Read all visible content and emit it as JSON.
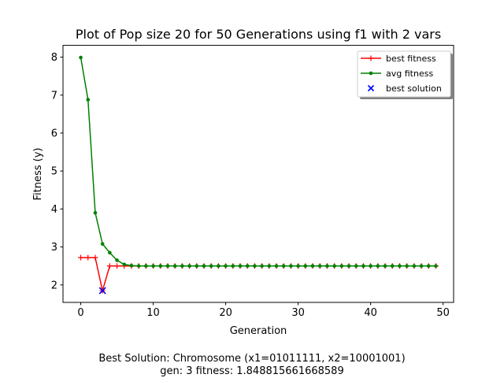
{
  "chart_data": {
    "type": "line",
    "title": "Plot of Pop size 20 for 50 Generations using f1 with 2 vars",
    "xlabel": "Generation",
    "ylabel": "Fitness (y)",
    "xlim": [
      -2.45,
      51.45
    ],
    "ylim": [
      1.54,
      8.31
    ],
    "xticks": [
      0,
      10,
      20,
      30,
      40,
      50
    ],
    "yticks": [
      2,
      3,
      4,
      5,
      6,
      7,
      8
    ],
    "grid": false,
    "legend_position": "top-right",
    "x": [
      0,
      1,
      2,
      3,
      4,
      5,
      6,
      7,
      8,
      9,
      10,
      11,
      12,
      13,
      14,
      15,
      16,
      17,
      18,
      19,
      20,
      21,
      22,
      23,
      24,
      25,
      26,
      27,
      28,
      29,
      30,
      31,
      32,
      33,
      34,
      35,
      36,
      37,
      38,
      39,
      40,
      41,
      42,
      43,
      44,
      45,
      46,
      47,
      48,
      49
    ],
    "series": [
      {
        "name": "best fitness",
        "color": "#ff0000",
        "marker": "plus",
        "values": [
          2.72,
          2.72,
          2.72,
          1.85,
          2.5,
          2.5,
          2.5,
          2.5,
          2.5,
          2.5,
          2.5,
          2.5,
          2.5,
          2.5,
          2.5,
          2.5,
          2.5,
          2.5,
          2.5,
          2.5,
          2.5,
          2.5,
          2.5,
          2.5,
          2.5,
          2.5,
          2.5,
          2.5,
          2.5,
          2.5,
          2.5,
          2.5,
          2.5,
          2.5,
          2.5,
          2.5,
          2.5,
          2.5,
          2.5,
          2.5,
          2.5,
          2.5,
          2.5,
          2.5,
          2.5,
          2.5,
          2.5,
          2.5,
          2.5,
          2.5
        ]
      },
      {
        "name": "avg fitness",
        "color": "#008000",
        "marker": "dot",
        "values": [
          7.99,
          6.88,
          3.9,
          3.08,
          2.85,
          2.65,
          2.54,
          2.51,
          2.5,
          2.5,
          2.5,
          2.5,
          2.5,
          2.5,
          2.5,
          2.5,
          2.5,
          2.5,
          2.5,
          2.5,
          2.5,
          2.5,
          2.5,
          2.5,
          2.5,
          2.5,
          2.5,
          2.5,
          2.5,
          2.5,
          2.5,
          2.5,
          2.5,
          2.5,
          2.5,
          2.5,
          2.5,
          2.5,
          2.5,
          2.5,
          2.5,
          2.5,
          2.5,
          2.5,
          2.5,
          2.5,
          2.5,
          2.5,
          2.5,
          2.5
        ]
      }
    ],
    "scatter": {
      "name": "best solution",
      "color": "#0000ff",
      "marker": "x",
      "points": [
        [
          3,
          1.85
        ]
      ]
    }
  },
  "caption": {
    "line1": "Best Solution: Chromosome (x1=01011111, x2=10001001)",
    "line2": "gen: 3 fitness: 1.848815661668589"
  }
}
